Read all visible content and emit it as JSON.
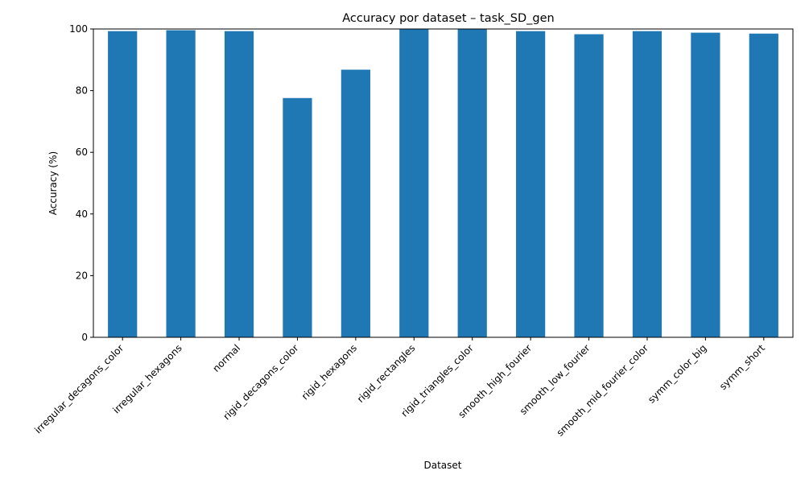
{
  "chart_data": {
    "type": "bar",
    "title": "Accuracy por dataset – task_SD_gen",
    "xlabel": "Dataset",
    "ylabel": "Accuracy (%)",
    "ylim": [
      0,
      100
    ],
    "yticks": [
      0,
      20,
      40,
      60,
      80,
      100
    ],
    "grid": false,
    "legend": "none",
    "bar_color": "#1f77b4",
    "categories": [
      "irregular_decagons_color",
      "irregular_hexagons",
      "normal",
      "rigid_decagons_color",
      "rigid_hexagons",
      "rigid_rectangles",
      "rigid_triangles_color",
      "smooth_high_fourier",
      "smooth_low_fourier",
      "smooth_mid_fourier_color",
      "symm_color_big",
      "symm_short"
    ],
    "values": [
      99.3,
      99.6,
      99.3,
      77.6,
      86.8,
      100.0,
      100.0,
      99.3,
      98.3,
      99.3,
      98.8,
      98.5
    ]
  }
}
